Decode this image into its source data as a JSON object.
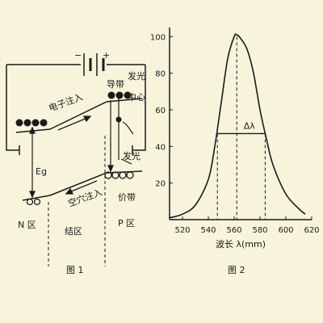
{
  "figure1": {
    "caption": "图 1",
    "battery_minus": "−",
    "battery_plus": "+",
    "conduction_band": "导带",
    "emission_top": "发光",
    "center": "中心",
    "emission_bottom": "发光",
    "electron_injection": "电子注入",
    "hole_injection": "空穴注入",
    "valence_band": "价带",
    "band_gap": "Eg",
    "n_region": "N 区",
    "junction_region": "结区",
    "p_region": "P 区"
  },
  "figure2": {
    "caption": "图 2",
    "delta_label": "Δλ"
  },
  "chart_data": {
    "type": "line",
    "xlabel": "波长 λ(mm)",
    "ylabel": "",
    "xlim": [
      510,
      620
    ],
    "ylim": [
      0,
      105
    ],
    "x_ticks": [
      520,
      540,
      560,
      580,
      600,
      620
    ],
    "y_ticks": [
      20,
      40,
      60,
      80,
      100
    ],
    "series": [
      {
        "x": [
          510,
          520,
          530,
          540,
          545,
          550,
          555,
          560,
          562,
          565,
          570,
          575,
          580,
          585,
          590,
          600,
          610,
          615
        ],
        "values": [
          1,
          3,
          8,
          22,
          40,
          64,
          88,
          100,
          101,
          99,
          93,
          80,
          60,
          44,
          30,
          14,
          6,
          3
        ]
      }
    ],
    "annotations": [
      {
        "text": "Δλ",
        "type": "fwhm",
        "x_start": 547,
        "x_end": 584,
        "y": 47
      },
      {
        "type": "peak-line",
        "x": 562
      }
    ]
  }
}
